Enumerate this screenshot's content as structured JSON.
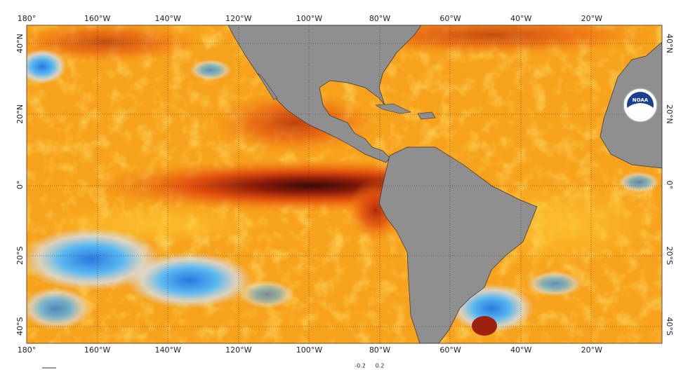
{
  "map": {
    "lon_labels": [
      "180°",
      "160°W",
      "140°W",
      "120°W",
      "100°W",
      "80°W",
      "60°W",
      "40°W",
      "20°W"
    ],
    "lat_labels": [
      "40°N",
      "20°N",
      "0°",
      "20°S",
      "40°S"
    ],
    "logo": "NOAA",
    "colorbar_labels": [
      "-0.2",
      "0.2"
    ]
  }
}
